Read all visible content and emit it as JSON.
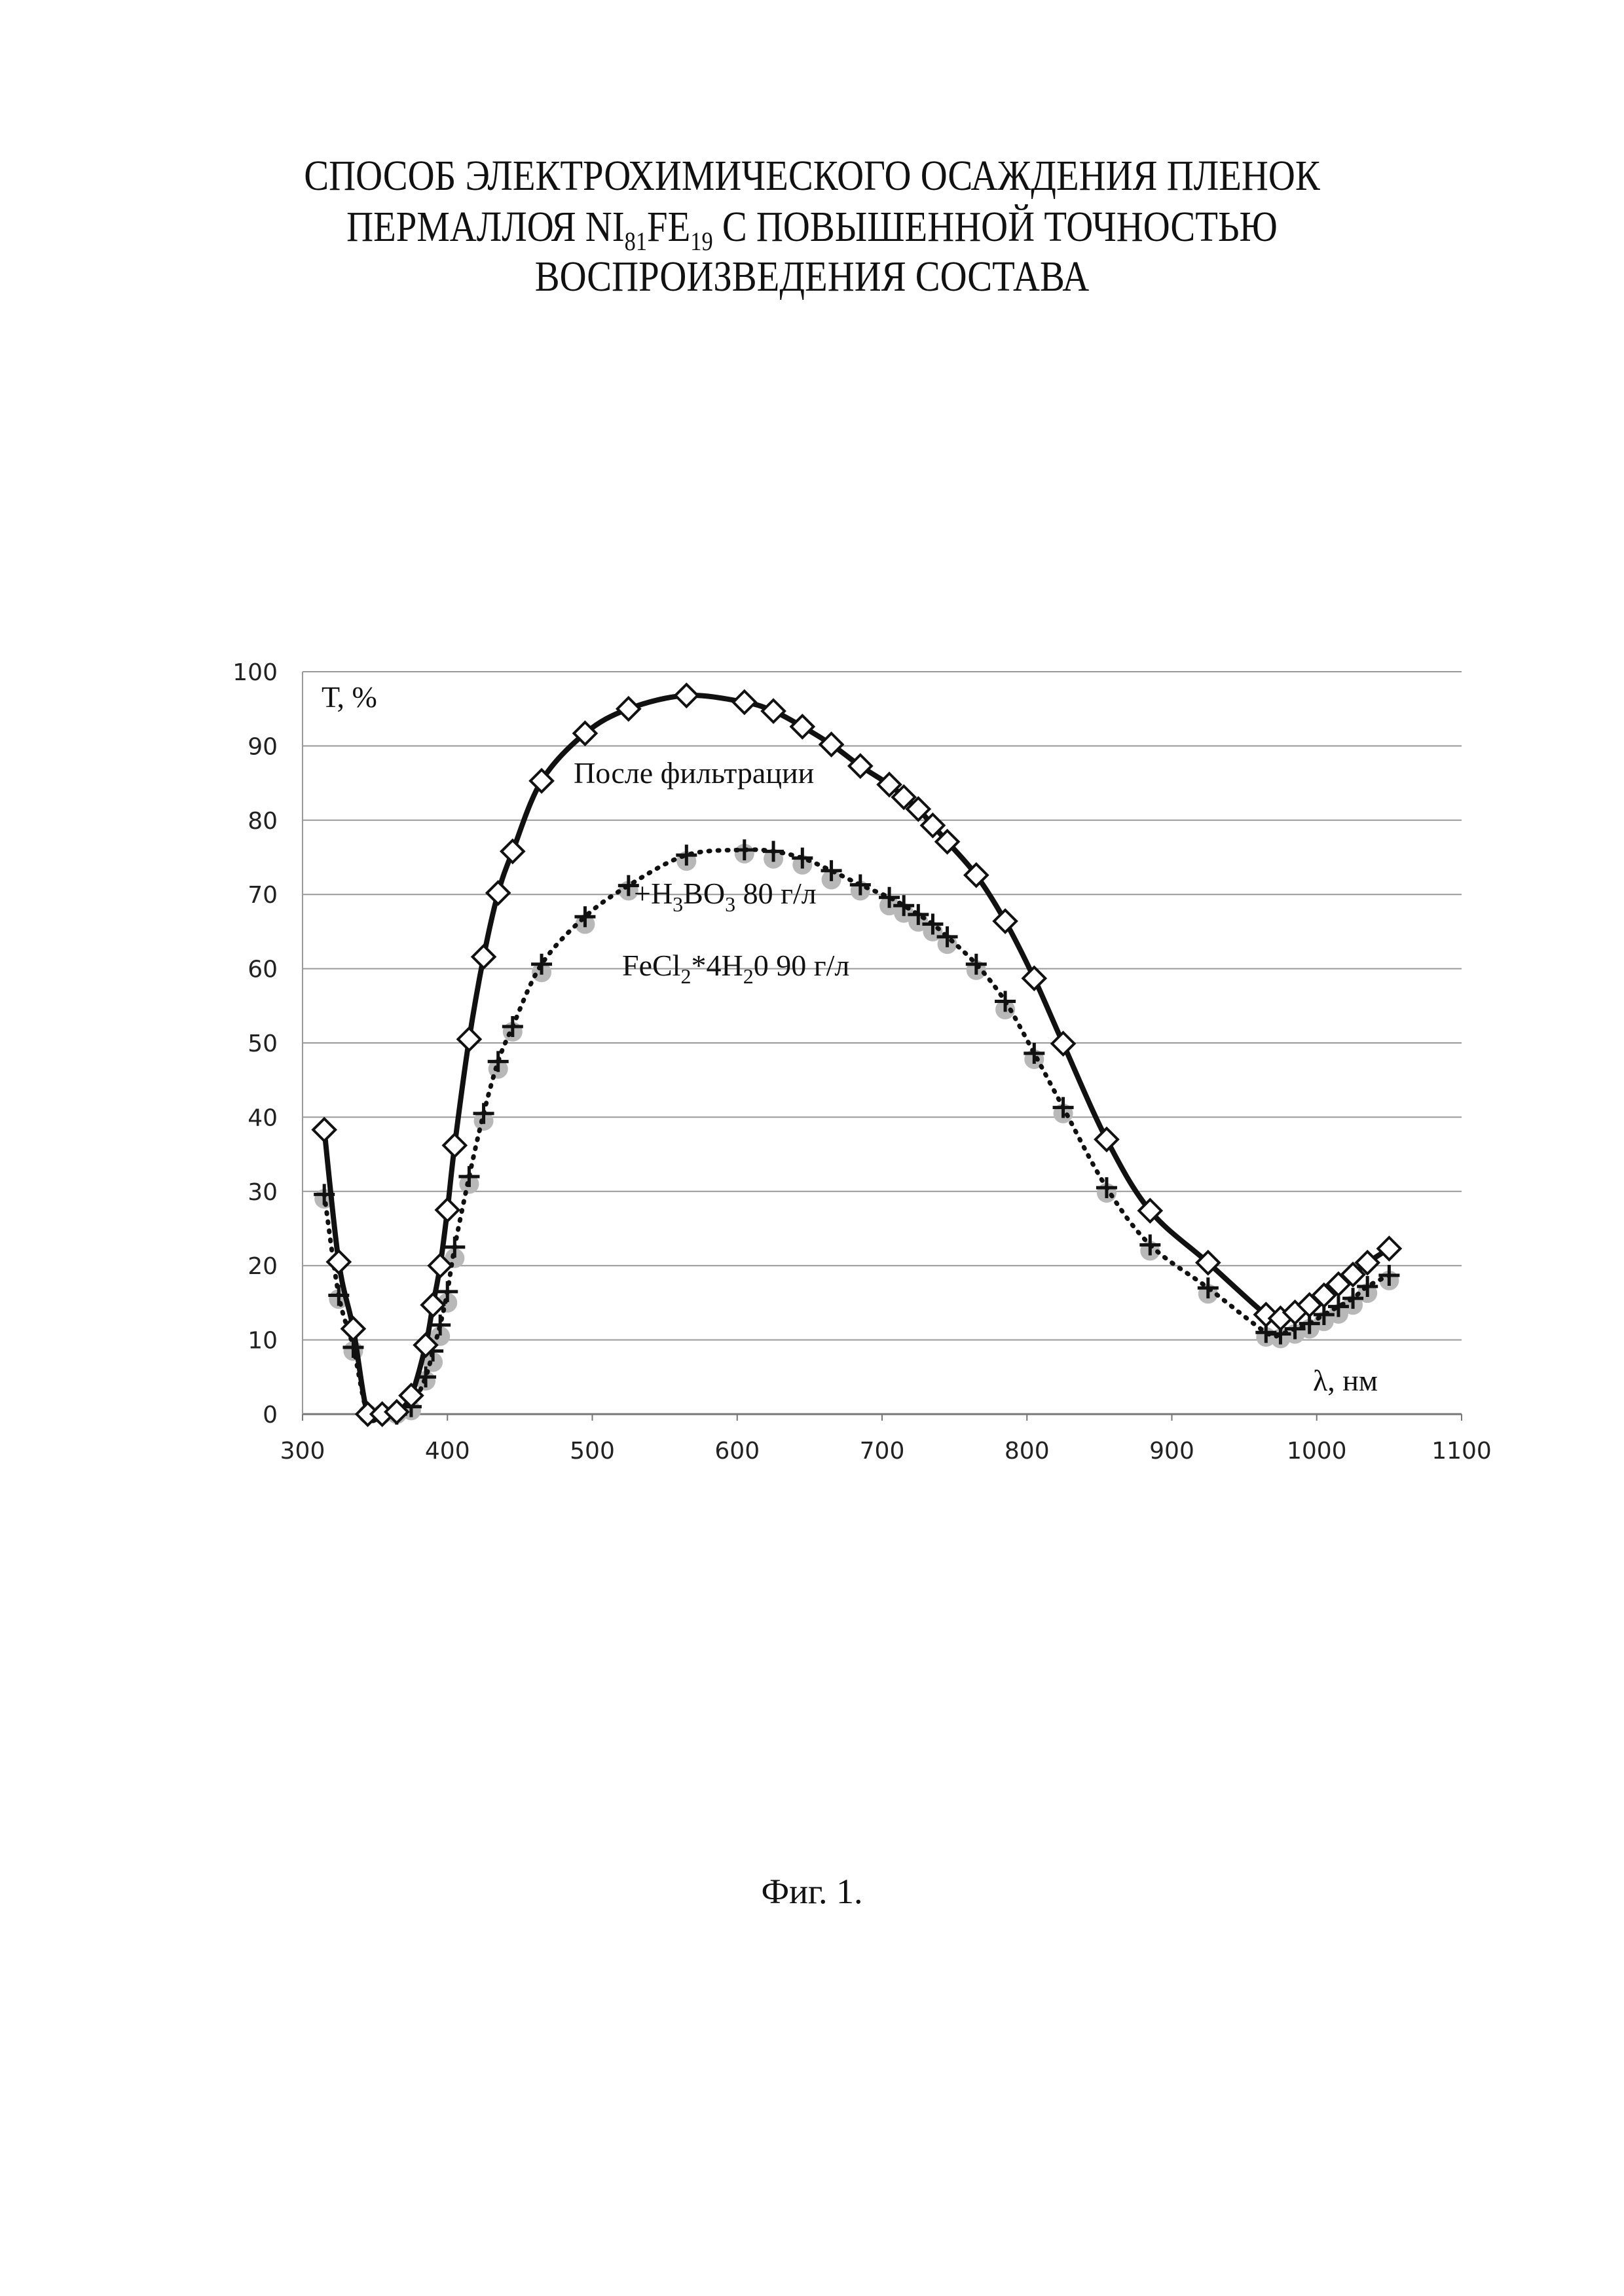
{
  "document": {
    "title_line1": "СПОСОБ ЭЛЕКТРОХИМИЧЕСКОГО ОСАЖДЕНИЯ ПЛЕНОК",
    "title_line2": {
      "a": "ПЕРМАЛЛОЯ NI",
      "sub1": "81",
      "b": "FE",
      "sub2": "19",
      "c": " С ПОВЫШЕННОЙ ТОЧНОСТЬЮ"
    },
    "title_line3": "ВОСПРОИЗВЕДЕНИЯ СОСТАВА",
    "caption": "Фиг. 1."
  },
  "chart_data": {
    "type": "line",
    "title": "",
    "ylabel": "Т, %",
    "xlabel": "λ, нм",
    "xlim": [
      300,
      1100
    ],
    "ylim": [
      0,
      100
    ],
    "xticks": [
      300,
      400,
      500,
      600,
      700,
      800,
      900,
      1000,
      1100
    ],
    "yticks": [
      0,
      10,
      20,
      30,
      40,
      50,
      60,
      70,
      80,
      90,
      100
    ],
    "grid": "horizontal",
    "annotations": {
      "series1": "После фильтрации",
      "series2": {
        "a": "+H",
        "s1": "3",
        "b": "BO",
        "s2": "3",
        "c": " 80 г/л"
      },
      "series3": {
        "a": "FeCl",
        "s1": "2",
        "b": "*4H",
        "s2": "2",
        "c": "0 90 г/л"
      }
    },
    "series": [
      {
        "name": "После фильтрации",
        "marker": "diamond",
        "line": "solid",
        "color": "#111111",
        "x": [
          315,
          325,
          335,
          345,
          355,
          365,
          375,
          385,
          390,
          395,
          400,
          405,
          415,
          425,
          435,
          445,
          465,
          495,
          525,
          565,
          605,
          625,
          645,
          665,
          685,
          705,
          715,
          725,
          735,
          745,
          765,
          785,
          805,
          825,
          855,
          885,
          925,
          965,
          975,
          985,
          995,
          1005,
          1015,
          1025,
          1035,
          1050
        ],
        "y": [
          38.3,
          20.5,
          11.5,
          0,
          0,
          0.3,
          2.5,
          9.3,
          14.7,
          20,
          27.5,
          36.2,
          50.5,
          61.6,
          70.2,
          75.8,
          85.3,
          91.7,
          95,
          96.8,
          95.9,
          94.7,
          92.6,
          90.2,
          87.3,
          84.8,
          83.1,
          81.5,
          79.3,
          77.1,
          72.6,
          66.4,
          58.7,
          49.9,
          37,
          27.4,
          20.4,
          13.4,
          12.9,
          13.7,
          14.7,
          16,
          17.5,
          18.8,
          20.4,
          22.3
        ]
      },
      {
        "name": "+H3BO3 80 г/л",
        "marker": "plus",
        "line": "dotted",
        "color": "#111111",
        "x": [
          315,
          325,
          335,
          345,
          355,
          365,
          375,
          385,
          390,
          395,
          400,
          405,
          415,
          425,
          435,
          445,
          465,
          495,
          525,
          565,
          605,
          625,
          645,
          665,
          685,
          705,
          715,
          725,
          735,
          745,
          765,
          785,
          805,
          825,
          855,
          885,
          925,
          965,
          975,
          985,
          995,
          1005,
          1015,
          1025,
          1035,
          1050
        ],
        "y": [
          29.6,
          16,
          9,
          0,
          0,
          0,
          1,
          5,
          8.5,
          12,
          16.5,
          22.5,
          32,
          40.5,
          47.5,
          52.2,
          60.6,
          67,
          71.2,
          75.3,
          76,
          75.8,
          74.9,
          73.2,
          71.3,
          69.6,
          68.5,
          67.3,
          66,
          64.3,
          60.6,
          55.6,
          48.6,
          41.3,
          30.5,
          22.8,
          17,
          11,
          10.8,
          11.5,
          12.2,
          13.4,
          14.5,
          15.6,
          17.2,
          18.7
        ]
      },
      {
        "name": "FeCl2*4H20 90 г/л",
        "marker": "circle",
        "line": "none",
        "color": "#b8b8b8",
        "x": [
          315,
          325,
          335,
          345,
          355,
          365,
          375,
          385,
          390,
          395,
          400,
          405,
          415,
          425,
          435,
          445,
          465,
          495,
          525,
          565,
          605,
          625,
          645,
          665,
          685,
          705,
          715,
          725,
          735,
          745,
          765,
          785,
          805,
          825,
          855,
          885,
          925,
          965,
          975,
          985,
          995,
          1005,
          1015,
          1025,
          1035,
          1050
        ],
        "y": [
          29,
          15.5,
          8.5,
          0,
          0,
          0,
          0.5,
          4.5,
          7,
          10.5,
          15,
          21,
          31,
          39.5,
          46.5,
          51.5,
          59.5,
          66,
          70.5,
          74.5,
          75.5,
          74.8,
          74,
          72,
          70.5,
          68.5,
          67.5,
          66.3,
          65,
          63.3,
          59.8,
          54.5,
          47.8,
          40.5,
          29.8,
          22,
          16.2,
          10.4,
          10.2,
          10.8,
          11.5,
          12.5,
          13.5,
          14.7,
          16.3,
          18
        ]
      }
    ]
  }
}
